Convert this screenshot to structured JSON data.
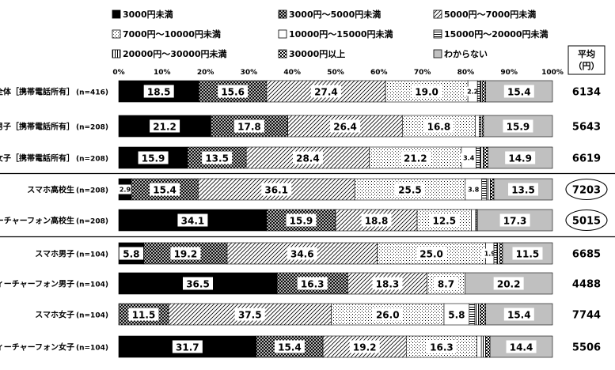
{
  "chart_data": {
    "type": "bar",
    "stacked": true,
    "orientation": "horizontal",
    "x_ticks": [
      "0%",
      "10%",
      "20%",
      "30%",
      "40%",
      "50%",
      "60%",
      "70%",
      "80%",
      "90%",
      "100%"
    ],
    "xlim": [
      0,
      100
    ],
    "avg_header": [
      "平均",
      "（円）"
    ],
    "legend": [
      {
        "name": "3000円未満",
        "pattern": "black"
      },
      {
        "name": "3000円～5000円未満",
        "pattern": "cross"
      },
      {
        "name": "5000円～7000円未満",
        "pattern": "diag"
      },
      {
        "name": "7000円～10000円未満",
        "pattern": "dots"
      },
      {
        "name": "10000円～15000円未満",
        "pattern": "white"
      },
      {
        "name": "15000円～20000円未満",
        "pattern": "hlines"
      },
      {
        "name": "20000円～30000円未満",
        "pattern": "vlines"
      },
      {
        "name": "30000円以上",
        "pattern": "checker"
      },
      {
        "name": "わからない",
        "pattern": "gray"
      }
    ],
    "rows": [
      {
        "label": "全体［携帯電話所有］",
        "n": "(n=416)",
        "avg": "6134",
        "circled": false,
        "values": [
          18.5,
          15.6,
          27.4,
          19.0,
          2.2,
          0.6,
          0.5,
          0.8,
          15.4
        ],
        "labels": [
          "18.5",
          "15.6",
          "27.4",
          "19.0",
          "2.2",
          "",
          "",
          "",
          "15.4"
        ]
      },
      {
        "label": "男子［携帯電話所有］",
        "n": "(n=208)",
        "avg": "5643",
        "circled": false,
        "values": [
          21.2,
          17.8,
          26.4,
          16.8,
          0.9,
          0.4,
          0.3,
          0.3,
          15.9
        ],
        "labels": [
          "21.2",
          "17.8",
          "26.4",
          "16.8",
          "",
          "",
          "",
          "",
          "15.9"
        ]
      },
      {
        "label": "女子［携帯電話所有］",
        "n": "(n=208)",
        "avg": "6619",
        "circled": false,
        "values": [
          15.9,
          13.5,
          28.4,
          21.2,
          3.4,
          0.9,
          0.8,
          1.0,
          14.9
        ],
        "labels": [
          "15.9",
          "13.5",
          "28.4",
          "21.2",
          "3.4",
          "",
          "",
          "",
          "14.9"
        ]
      },
      {
        "label": "スマホ高校生",
        "n": "(n=208)",
        "avg": "7203",
        "circled": true,
        "values": [
          2.9,
          15.4,
          36.1,
          25.5,
          3.8,
          1.1,
          0.9,
          0.8,
          13.5
        ],
        "labels": [
          "2.9",
          "15.4",
          "36.1",
          "25.5",
          "3.8",
          "",
          "",
          "",
          "13.5"
        ]
      },
      {
        "label": "フィーチャーフォン高校生",
        "n": "(n=208)",
        "avg": "5015",
        "circled": true,
        "values": [
          34.1,
          15.9,
          18.8,
          12.5,
          1.0,
          0.2,
          0.2,
          0.0,
          17.3
        ],
        "labels": [
          "34.1",
          "15.9",
          "18.8",
          "12.5",
          "",
          "",
          "",
          "",
          "17.3"
        ]
      },
      {
        "label": "スマホ男子",
        "n": "(n=104)",
        "avg": "6685",
        "circled": false,
        "values": [
          5.8,
          19.2,
          34.6,
          25.0,
          1.9,
          0.7,
          0.6,
          0.7,
          11.5
        ],
        "labels": [
          "5.8",
          "19.2",
          "34.6",
          "25.0",
          "1.9",
          "",
          "",
          "",
          "11.5"
        ]
      },
      {
        "label": "フィーチャーフォン男子",
        "n": "(n=104)",
        "avg": "4488",
        "circled": false,
        "values": [
          36.5,
          16.3,
          18.3,
          8.7,
          0.0,
          0.0,
          0.0,
          0.0,
          20.2
        ],
        "labels": [
          "36.5",
          "16.3",
          "18.3",
          "8.7",
          "",
          "",
          "",
          "",
          "20.2"
        ]
      },
      {
        "label": "スマホ女子",
        "n": "(n=104)",
        "avg": "7744",
        "circled": false,
        "values": [
          0.0,
          11.5,
          37.5,
          26.0,
          5.8,
          1.3,
          1.2,
          1.3,
          15.4
        ],
        "labels": [
          "",
          "11.5",
          "37.5",
          "26.0",
          "5.8",
          "",
          "",
          "",
          "15.4"
        ]
      },
      {
        "label": "フィーチャーフォン女子",
        "n": "(n=104)",
        "avg": "5506",
        "circled": false,
        "values": [
          31.7,
          15.4,
          19.2,
          16.3,
          1.0,
          0.0,
          1.0,
          1.0,
          14.4
        ],
        "labels": [
          "31.7",
          "15.4",
          "19.2",
          "16.3",
          "",
          "",
          "",
          "",
          "14.4"
        ]
      }
    ],
    "group_separators_after": [
      2,
      4
    ]
  }
}
